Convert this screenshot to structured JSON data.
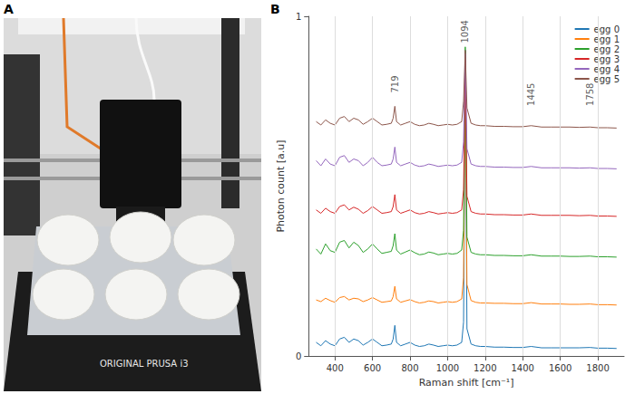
{
  "panel_labels": [
    "A",
    "B"
  ],
  "photo_text": "ORIGINAL PRUSA i3",
  "chart_data": {
    "type": "line",
    "xlabel": "Raman shift [cm⁻¹]",
    "ylabel": "Photon count [a.u]",
    "xlim": [
      260,
      1940
    ],
    "xticks": [
      400,
      600,
      800,
      1000,
      1200,
      1400,
      1600,
      1800
    ],
    "ylim": [
      0,
      1
    ],
    "yticks": [
      0,
      1
    ],
    "grid": true,
    "legend": "upper right",
    "annotations": [
      {
        "x": 719,
        "y": 0.8,
        "label": "719"
      },
      {
        "x": 1094,
        "y": 0.955,
        "label": "1094"
      },
      {
        "x": 1445,
        "y": 0.77,
        "label": "1445"
      },
      {
        "x": 1758,
        "y": 0.77,
        "label": "1758"
      }
    ],
    "x": [
      300,
      325,
      350,
      375,
      400,
      425,
      450,
      475,
      500,
      525,
      550,
      575,
      600,
      625,
      650,
      675,
      700,
      710,
      719,
      728,
      750,
      775,
      800,
      825,
      850,
      875,
      900,
      925,
      950,
      975,
      1000,
      1025,
      1050,
      1075,
      1085,
      1094,
      1103,
      1125,
      1150,
      1175,
      1200,
      1250,
      1300,
      1350,
      1400,
      1445,
      1500,
      1550,
      1600,
      1650,
      1700,
      1758,
      1800,
      1850,
      1900
    ],
    "series": [
      {
        "name": "egg 0",
        "color": "#1f77b4",
        "values": [
          0.04,
          0.03,
          0.045,
          0.035,
          0.03,
          0.05,
          0.055,
          0.04,
          0.05,
          0.045,
          0.032,
          0.04,
          0.05,
          0.04,
          0.03,
          0.032,
          0.035,
          0.05,
          0.09,
          0.04,
          0.03,
          0.035,
          0.04,
          0.032,
          0.028,
          0.03,
          0.035,
          0.032,
          0.028,
          0.03,
          0.032,
          0.03,
          0.032,
          0.04,
          0.1,
          0.9,
          0.08,
          0.035,
          0.03,
          0.028,
          0.028,
          0.026,
          0.026,
          0.025,
          0.025,
          0.028,
          0.024,
          0.024,
          0.024,
          0.024,
          0.024,
          0.025,
          0.023,
          0.023,
          0.022
        ]
      },
      {
        "name": "egg 1",
        "color": "#ff7f0e",
        "values": [
          0.165,
          0.16,
          0.17,
          0.163,
          0.158,
          0.172,
          0.175,
          0.165,
          0.17,
          0.168,
          0.16,
          0.165,
          0.172,
          0.165,
          0.158,
          0.16,
          0.162,
          0.175,
          0.205,
          0.168,
          0.158,
          0.162,
          0.166,
          0.16,
          0.156,
          0.158,
          0.162,
          0.16,
          0.156,
          0.158,
          0.16,
          0.158,
          0.16,
          0.168,
          0.23,
          0.88,
          0.21,
          0.163,
          0.158,
          0.156,
          0.156,
          0.155,
          0.155,
          0.154,
          0.154,
          0.157,
          0.153,
          0.153,
          0.153,
          0.152,
          0.152,
          0.153,
          0.151,
          0.151,
          0.15
        ]
      },
      {
        "name": "egg 2",
        "color": "#2ca02c",
        "values": [
          0.315,
          0.3,
          0.33,
          0.31,
          0.305,
          0.335,
          0.34,
          0.318,
          0.335,
          0.325,
          0.305,
          0.315,
          0.33,
          0.315,
          0.302,
          0.305,
          0.308,
          0.325,
          0.36,
          0.312,
          0.3,
          0.306,
          0.312,
          0.304,
          0.298,
          0.3,
          0.306,
          0.303,
          0.298,
          0.3,
          0.302,
          0.3,
          0.302,
          0.312,
          0.37,
          0.91,
          0.35,
          0.305,
          0.3,
          0.298,
          0.298,
          0.296,
          0.296,
          0.295,
          0.295,
          0.298,
          0.294,
          0.294,
          0.294,
          0.293,
          0.293,
          0.294,
          0.292,
          0.292,
          0.291
        ]
      },
      {
        "name": "egg 3",
        "color": "#d62728",
        "values": [
          0.43,
          0.42,
          0.435,
          0.425,
          0.42,
          0.44,
          0.445,
          0.43,
          0.438,
          0.432,
          0.42,
          0.428,
          0.44,
          0.43,
          0.42,
          0.422,
          0.425,
          0.44,
          0.475,
          0.43,
          0.42,
          0.425,
          0.43,
          0.422,
          0.418,
          0.42,
          0.425,
          0.422,
          0.418,
          0.42,
          0.422,
          0.42,
          0.422,
          0.43,
          0.49,
          0.87,
          0.47,
          0.425,
          0.42,
          0.418,
          0.418,
          0.416,
          0.416,
          0.415,
          0.415,
          0.418,
          0.414,
          0.414,
          0.414,
          0.414,
          0.413,
          0.414,
          0.412,
          0.412,
          0.411
        ]
      },
      {
        "name": "egg 4",
        "color": "#9467bd",
        "values": [
          0.575,
          0.56,
          0.58,
          0.565,
          0.56,
          0.585,
          0.59,
          0.57,
          0.58,
          0.575,
          0.56,
          0.57,
          0.585,
          0.57,
          0.56,
          0.562,
          0.565,
          0.58,
          0.615,
          0.57,
          0.56,
          0.565,
          0.57,
          0.562,
          0.558,
          0.56,
          0.565,
          0.562,
          0.558,
          0.56,
          0.562,
          0.56,
          0.562,
          0.57,
          0.63,
          0.89,
          0.61,
          0.565,
          0.56,
          0.558,
          0.558,
          0.556,
          0.556,
          0.555,
          0.555,
          0.558,
          0.554,
          0.554,
          0.554,
          0.554,
          0.553,
          0.554,
          0.552,
          0.552,
          0.551
        ]
      },
      {
        "name": "egg 5",
        "color": "#8c564b",
        "values": [
          0.69,
          0.68,
          0.695,
          0.685,
          0.68,
          0.7,
          0.705,
          0.69,
          0.7,
          0.695,
          0.682,
          0.69,
          0.7,
          0.69,
          0.68,
          0.682,
          0.685,
          0.7,
          0.735,
          0.69,
          0.68,
          0.685,
          0.69,
          0.682,
          0.678,
          0.68,
          0.685,
          0.682,
          0.678,
          0.68,
          0.682,
          0.68,
          0.682,
          0.69,
          0.75,
          0.9,
          0.73,
          0.685,
          0.68,
          0.678,
          0.678,
          0.676,
          0.676,
          0.675,
          0.675,
          0.678,
          0.674,
          0.674,
          0.674,
          0.674,
          0.673,
          0.674,
          0.672,
          0.672,
          0.671
        ]
      }
    ]
  }
}
